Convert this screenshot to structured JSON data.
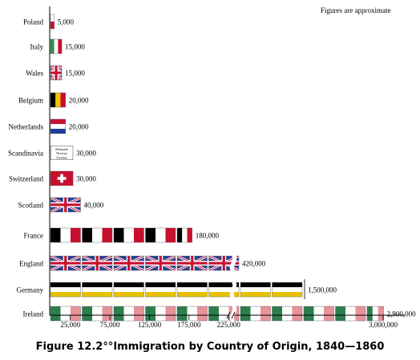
{
  "caption": "Figure 12.2°°Immigration by Country of Origin, 1840—1860",
  "chart_data": {
    "type": "bar",
    "title": "Immigration by Country of Origin, 1840—1860",
    "annotation": "Figures are approximate",
    "categories": [
      "Poland",
      "Italy",
      "Wales",
      "Belgium",
      "Netherlands",
      "Scandinavia",
      "Switzerland",
      "Scotland",
      "France",
      "England",
      "Germany",
      "Ireland"
    ],
    "values": [
      5000,
      15000,
      15000,
      20000,
      20000,
      30000,
      30000,
      40000,
      180000,
      420000,
      1500000,
      2900000
    ],
    "value_labels": [
      "5,000",
      "15,000",
      "15,000",
      "20,000",
      "20,000",
      "30,000",
      "30,000",
      "40,000",
      "180,000",
      "420,000",
      "1,500,000",
      "2,900,000"
    ],
    "flags": [
      "poland",
      "italy",
      "union",
      "belgium",
      "netherlands",
      "scandinavia",
      "switzerland",
      "union",
      "france",
      "union",
      "germany",
      "ireland"
    ],
    "scandinavia_flag_text": [
      "Denmark",
      "Norway",
      "Sweden"
    ],
    "x_ticks": [
      {
        "value": 25000,
        "label": "25,000"
      },
      {
        "value": 75000,
        "label": "75,000"
      },
      {
        "value": 125000,
        "label": "125,000"
      },
      {
        "value": 175000,
        "label": "175,000"
      },
      {
        "value": 225000,
        "label": "225,000"
      },
      {
        "value": 3000000,
        "label": "3,000,000"
      }
    ],
    "unit_per_flag": 40000,
    "axis_break": true,
    "colors": {
      "poland_red": "#c8102e",
      "italy_green": "#2f8f4e",
      "italy_red": "#c8102e",
      "belgium_yellow": "#f3c300",
      "netherlands_red": "#c8102e",
      "netherlands_blue": "#1e3d99",
      "swiss_red": "#c8102e",
      "union_blue": "#2b3f91",
      "union_red": "#c8102e",
      "france_red": "#c8102e",
      "germany_yellow": "#e6c200",
      "ireland_green": "#2e7d4f",
      "ireland_orange": "#e7939a"
    }
  }
}
